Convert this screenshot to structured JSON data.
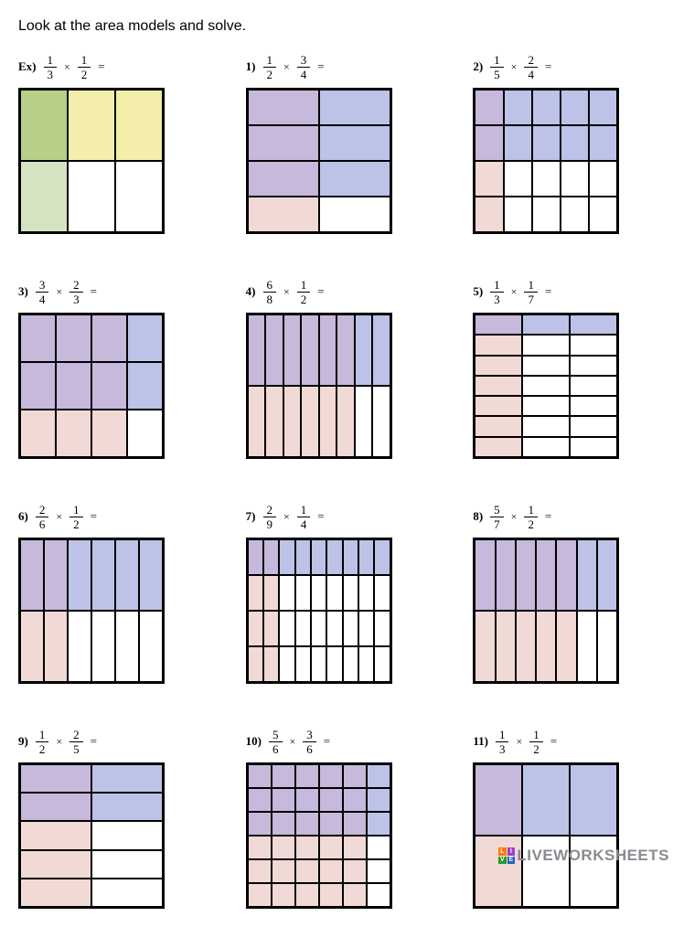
{
  "instruction": "Look at the area models and solve.",
  "colors": {
    "purple": "#c6b9dc",
    "blue": "#bcc2e8",
    "pink": "#f1d9d5",
    "white": "#ffffff",
    "green": "#b6d087",
    "yellow": "#f3eea9",
    "lgreen": "#d5e3c0"
  },
  "watermark": {
    "text": "LIVEWORKSHEETS",
    "badge_colors": [
      "#ff7a00",
      "#9a3fd0",
      "#2a9a2a",
      "#2060c0"
    ],
    "badge_letters": [
      "L",
      "I",
      "V",
      "E"
    ]
  },
  "problems": [
    {
      "label": "Ex)",
      "f1": {
        "n": "1",
        "d": "3"
      },
      "f2": {
        "n": "1",
        "d": "2"
      },
      "rows": 2,
      "cols": 3,
      "cells": [
        "green",
        "yellow",
        "yellow",
        "lgreen",
        "white",
        "white"
      ]
    },
    {
      "label": "1)",
      "f1": {
        "n": "1",
        "d": "2"
      },
      "f2": {
        "n": "3",
        "d": "4"
      },
      "rows": 4,
      "cols": 2,
      "cells": [
        "purple",
        "blue",
        "purple",
        "blue",
        "purple",
        "blue",
        "pink",
        "white"
      ]
    },
    {
      "label": "2)",
      "f1": {
        "n": "1",
        "d": "5"
      },
      "f2": {
        "n": "2",
        "d": "4"
      },
      "rows": 4,
      "cols": 5,
      "cells": [
        "purple",
        "blue",
        "blue",
        "blue",
        "blue",
        "purple",
        "blue",
        "blue",
        "blue",
        "blue",
        "pink",
        "white",
        "white",
        "white",
        "white",
        "pink",
        "white",
        "white",
        "white",
        "white"
      ]
    },
    {
      "label": "3)",
      "f1": {
        "n": "3",
        "d": "4"
      },
      "f2": {
        "n": "2",
        "d": "3"
      },
      "rows": 3,
      "cols": 4,
      "cells": [
        "purple",
        "purple",
        "purple",
        "blue",
        "purple",
        "purple",
        "purple",
        "blue",
        "pink",
        "pink",
        "pink",
        "white"
      ]
    },
    {
      "label": "4)",
      "f1": {
        "n": "6",
        "d": "8"
      },
      "f2": {
        "n": "1",
        "d": "2"
      },
      "rows": 2,
      "cols": 8,
      "cells": [
        "purple",
        "purple",
        "purple",
        "purple",
        "purple",
        "purple",
        "blue",
        "blue",
        "pink",
        "pink",
        "pink",
        "pink",
        "pink",
        "pink",
        "white",
        "white"
      ]
    },
    {
      "label": "5)",
      "f1": {
        "n": "1",
        "d": "3"
      },
      "f2": {
        "n": "1",
        "d": "7"
      },
      "rows": 7,
      "cols": 3,
      "cells": [
        "purple",
        "blue",
        "blue",
        "pink",
        "white",
        "white",
        "pink",
        "white",
        "white",
        "pink",
        "white",
        "white",
        "pink",
        "white",
        "white",
        "pink",
        "white",
        "white",
        "pink",
        "white",
        "white"
      ]
    },
    {
      "label": "6)",
      "f1": {
        "n": "2",
        "d": "6"
      },
      "f2": {
        "n": "1",
        "d": "2"
      },
      "rows": 2,
      "cols": 6,
      "cells": [
        "purple",
        "purple",
        "blue",
        "blue",
        "blue",
        "blue",
        "pink",
        "pink",
        "white",
        "white",
        "white",
        "white"
      ]
    },
    {
      "label": "7)",
      "f1": {
        "n": "2",
        "d": "9"
      },
      "f2": {
        "n": "1",
        "d": "4"
      },
      "rows": 4,
      "cols": 9,
      "cells": [
        "purple",
        "purple",
        "blue",
        "blue",
        "blue",
        "blue",
        "blue",
        "blue",
        "blue",
        "pink",
        "pink",
        "white",
        "white",
        "white",
        "white",
        "white",
        "white",
        "white",
        "pink",
        "pink",
        "white",
        "white",
        "white",
        "white",
        "white",
        "white",
        "white",
        "pink",
        "pink",
        "white",
        "white",
        "white",
        "white",
        "white",
        "white",
        "white"
      ]
    },
    {
      "label": "8)",
      "f1": {
        "n": "5",
        "d": "7"
      },
      "f2": {
        "n": "1",
        "d": "2"
      },
      "rows": 2,
      "cols": 7,
      "cells": [
        "purple",
        "purple",
        "purple",
        "purple",
        "purple",
        "blue",
        "blue",
        "pink",
        "pink",
        "pink",
        "pink",
        "pink",
        "white",
        "white"
      ]
    },
    {
      "label": "9)",
      "f1": {
        "n": "1",
        "d": "2"
      },
      "f2": {
        "n": "2",
        "d": "5"
      },
      "rows": 5,
      "cols": 2,
      "cells": [
        "purple",
        "blue",
        "purple",
        "blue",
        "pink",
        "white",
        "pink",
        "white",
        "pink",
        "white"
      ]
    },
    {
      "label": "10)",
      "f1": {
        "n": "5",
        "d": "6"
      },
      "f2": {
        "n": "3",
        "d": "6"
      },
      "rows": 6,
      "cols": 6,
      "cells": [
        "purple",
        "purple",
        "purple",
        "purple",
        "purple",
        "blue",
        "purple",
        "purple",
        "purple",
        "purple",
        "purple",
        "blue",
        "purple",
        "purple",
        "purple",
        "purple",
        "purple",
        "blue",
        "pink",
        "pink",
        "pink",
        "pink",
        "pink",
        "white",
        "pink",
        "pink",
        "pink",
        "pink",
        "pink",
        "white",
        "pink",
        "pink",
        "pink",
        "pink",
        "pink",
        "white"
      ]
    },
    {
      "label": "11)",
      "f1": {
        "n": "1",
        "d": "3"
      },
      "f2": {
        "n": "1",
        "d": "2"
      },
      "rows": 2,
      "cols": 3,
      "cells": [
        "purple",
        "blue",
        "blue",
        "pink",
        "white",
        "white"
      ]
    }
  ]
}
